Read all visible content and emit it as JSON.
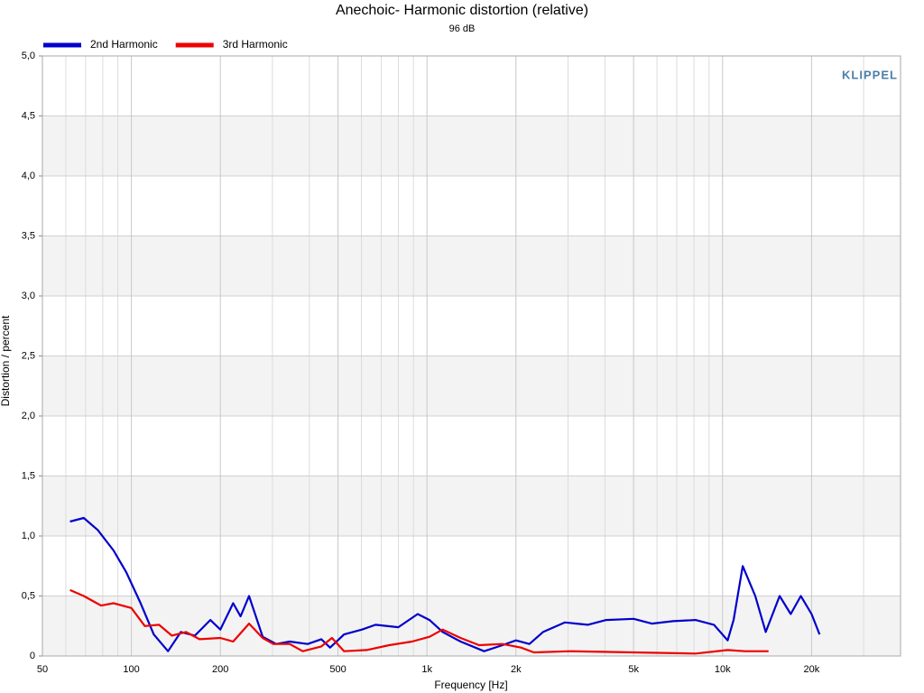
{
  "chart_data": {
    "type": "line",
    "title": "Anechoic- Harmonic distortion (relative)",
    "subtitle": "96 dB",
    "watermark": "KLIPPEL",
    "x_label": "Frequency [Hz]",
    "y_label": "Distortion / percent",
    "x_scale": "log",
    "xlim": [
      50,
      40000
    ],
    "xticks": [
      50,
      100,
      200,
      500,
      {
        "value": 1000,
        "label": "1k"
      },
      {
        "value": 2000,
        "label": "2k"
      },
      {
        "value": 5000,
        "label": "5k"
      },
      {
        "value": 10000,
        "label": "10k"
      },
      {
        "value": 20000,
        "label": "20k"
      }
    ],
    "xminorticks": [
      60,
      70,
      80,
      90,
      300,
      400,
      600,
      700,
      800,
      900,
      3000,
      4000,
      6000,
      7000,
      8000,
      9000,
      30000
    ],
    "ylim": [
      0,
      5
    ],
    "yticks": [
      0,
      {
        "value": 0.5,
        "label": "0,5"
      },
      {
        "value": 1,
        "label": "1,0"
      },
      {
        "value": 1.5,
        "label": "1,5"
      },
      {
        "value": 2,
        "label": "2,0"
      },
      {
        "value": 2.5,
        "label": "2,5"
      },
      {
        "value": 3,
        "label": "3,0"
      },
      {
        "value": 3.5,
        "label": "3,5"
      },
      {
        "value": 4,
        "label": "4,0"
      },
      {
        "value": 4.5,
        "label": "4,5"
      },
      {
        "value": 5,
        "label": "5,0"
      }
    ],
    "grid": true,
    "legend": "top-left",
    "series": [
      {
        "name": "2nd Harmonic",
        "color": "#0000cc",
        "x": [
          62,
          69,
          77,
          87,
          96,
          107,
          119,
          133,
          147,
          164,
          185,
          200,
          221,
          234,
          250,
          278,
          309,
          343,
          395,
          439,
          470,
          524,
          603,
          670,
          800,
          930,
          1020,
          1130,
          1300,
          1560,
          1800,
          2000,
          2220,
          2470,
          2930,
          3500,
          4040,
          5000,
          5760,
          6800,
          8100,
          9350,
          10400,
          10900,
          11700,
          12900,
          14000,
          15600,
          17000,
          18400,
          20000,
          21300
        ],
        "values": [
          1.12,
          1.15,
          1.05,
          0.88,
          0.7,
          0.45,
          0.18,
          0.04,
          0.2,
          0.17,
          0.3,
          0.22,
          0.44,
          0.33,
          0.5,
          0.16,
          0.1,
          0.12,
          0.1,
          0.14,
          0.07,
          0.18,
          0.22,
          0.26,
          0.24,
          0.35,
          0.3,
          0.2,
          0.12,
          0.04,
          0.09,
          0.13,
          0.1,
          0.2,
          0.28,
          0.26,
          0.3,
          0.31,
          0.27,
          0.29,
          0.3,
          0.26,
          0.13,
          0.3,
          0.75,
          0.5,
          0.2,
          0.5,
          0.35,
          0.5,
          0.35,
          0.18
        ]
      },
      {
        "name": "3rd Harmonic",
        "color": "#ee0000",
        "x": [
          62,
          69,
          79,
          87,
          100,
          111,
          124,
          137,
          153,
          170,
          200,
          221,
          250,
          278,
          302,
          343,
          380,
          439,
          477,
          524,
          625,
          745,
          890,
          1020,
          1130,
          1300,
          1500,
          1800,
          2080,
          2300,
          3040,
          5000,
          8100,
          10400,
          11900,
          14300
        ],
        "values": [
          0.55,
          0.5,
          0.42,
          0.44,
          0.4,
          0.25,
          0.26,
          0.17,
          0.2,
          0.14,
          0.15,
          0.12,
          0.27,
          0.15,
          0.1,
          0.1,
          0.04,
          0.08,
          0.15,
          0.04,
          0.05,
          0.09,
          0.12,
          0.16,
          0.22,
          0.15,
          0.09,
          0.1,
          0.07,
          0.03,
          0.04,
          0.03,
          0.02,
          0.05,
          0.04,
          0.04
        ]
      }
    ]
  }
}
